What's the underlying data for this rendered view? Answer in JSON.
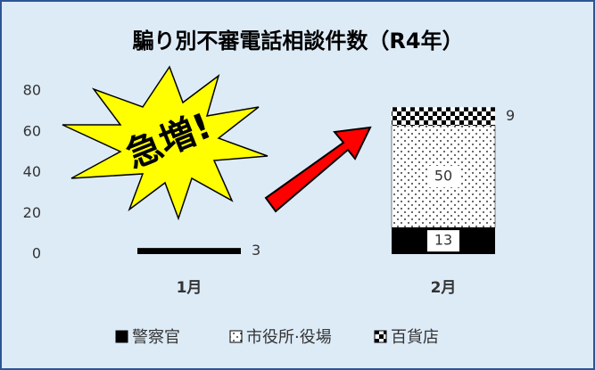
{
  "chart_data": {
    "type": "stacked-bar",
    "title": "騙り別不審電話相談件数（R4年）",
    "categories": [
      "1月",
      "2月"
    ],
    "series": [
      {
        "name": "警察官",
        "color": "#000000",
        "values": [
          3,
          13
        ]
      },
      {
        "name": "市役所·役場",
        "color": "#ffffff",
        "values": [
          0,
          50
        ]
      },
      {
        "name": "百貨店",
        "color": "#000000",
        "values": [
          0,
          9
        ]
      }
    ],
    "ylim": [
      0,
      80
    ],
    "yticks": [
      0,
      20,
      40,
      60,
      80
    ],
    "annotation": "急増!"
  }
}
